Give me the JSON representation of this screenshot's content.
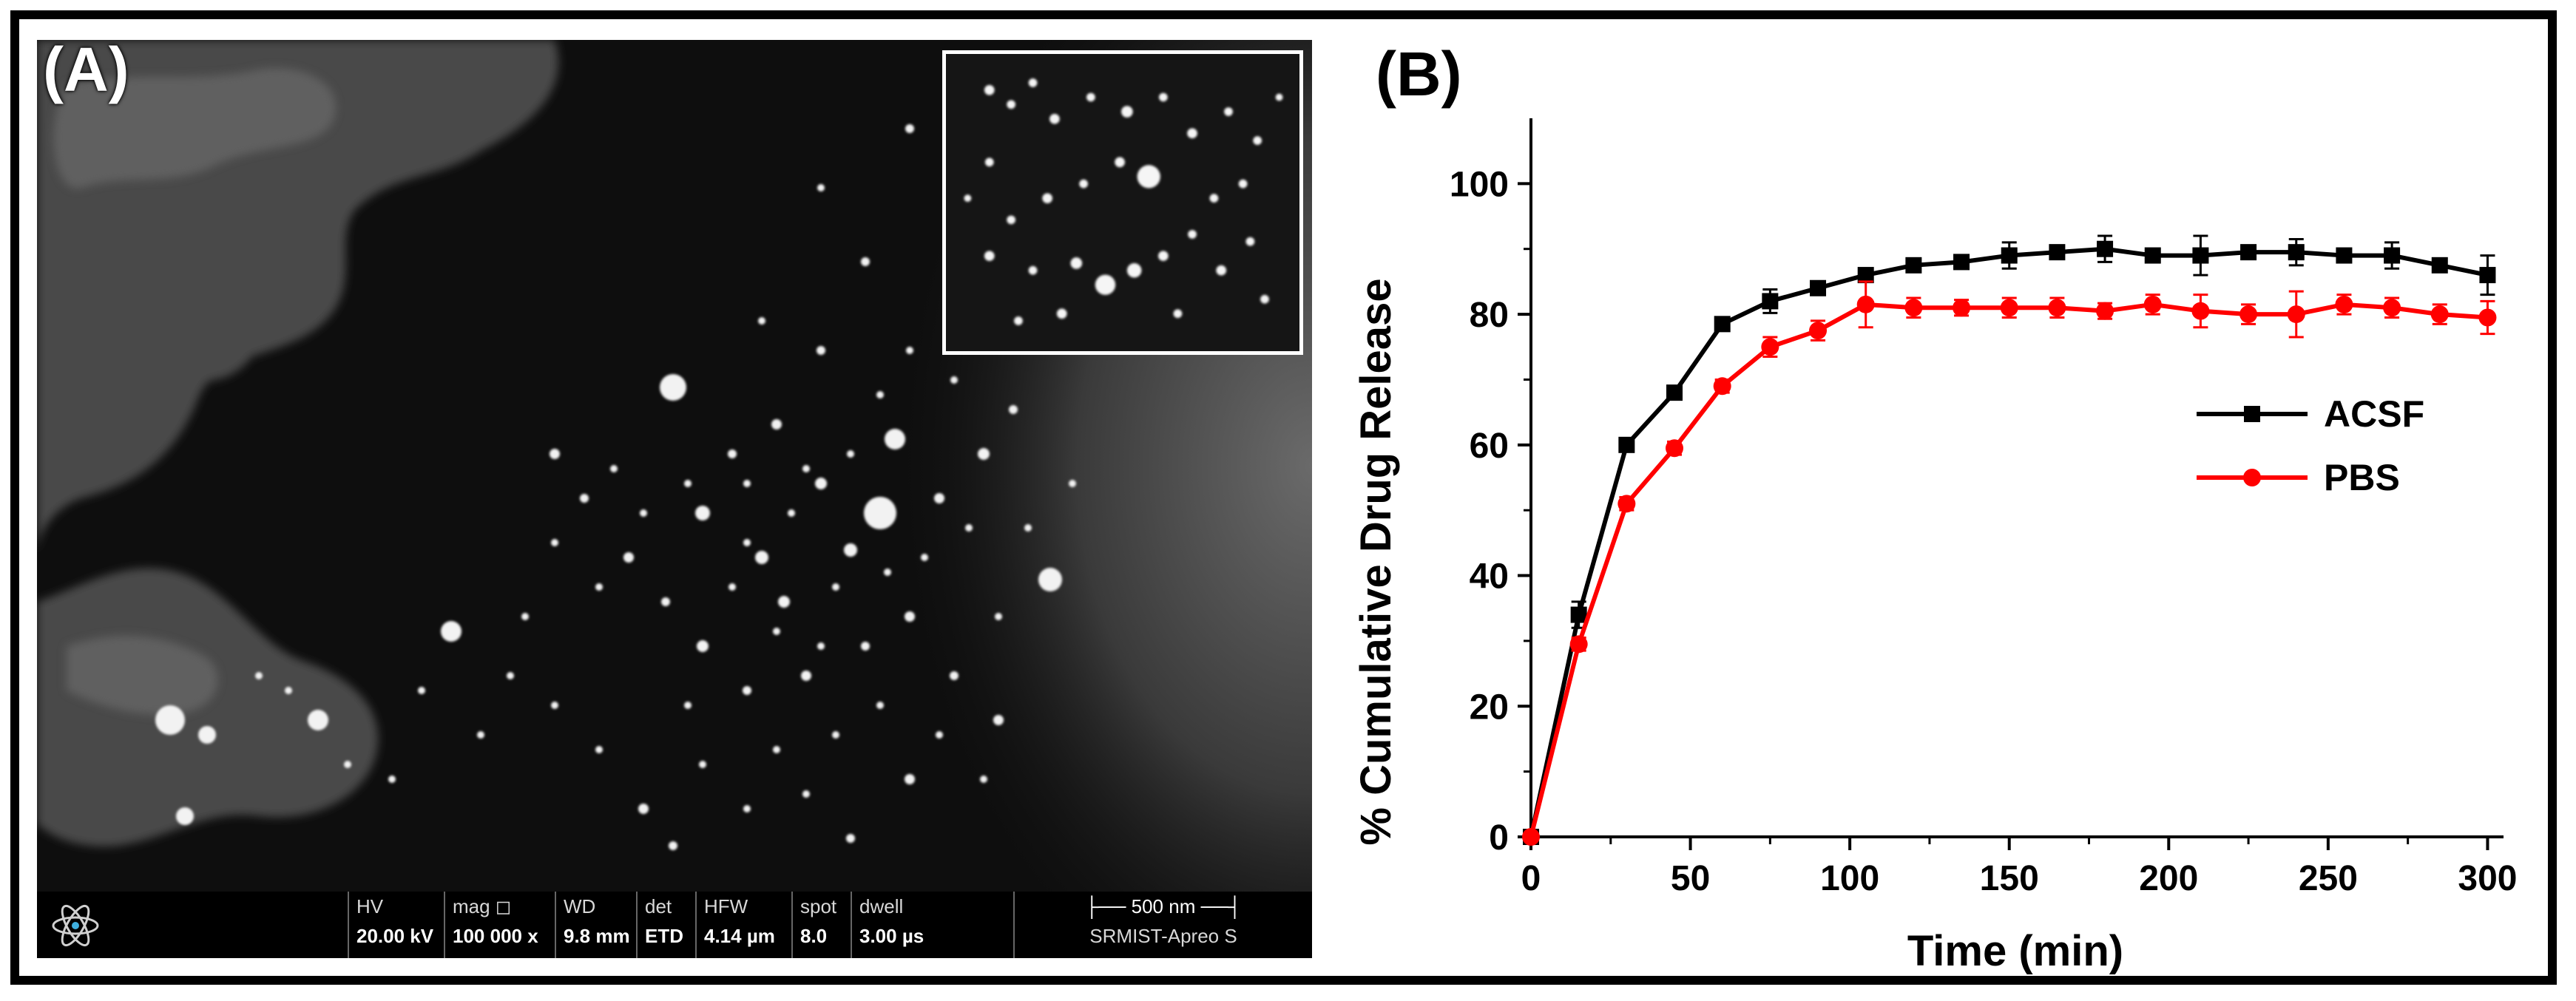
{
  "panel_a": {
    "label": "(A)",
    "sem_bar": {
      "fields": [
        {
          "key": "HV",
          "value": "20.00 kV"
        },
        {
          "key": "mag ◻",
          "value": "100 000 x"
        },
        {
          "key": "WD",
          "value": "9.8 mm"
        },
        {
          "key": "det",
          "value": "ETD"
        },
        {
          "key": "HFW",
          "value": "4.14 µm"
        },
        {
          "key": "spot",
          "value": "8.0"
        },
        {
          "key": "dwell",
          "value": "3.00 µs"
        }
      ],
      "scale_bar": "├── 500 nm ──┤",
      "instrument": "SRMIST-Apreo S"
    }
  },
  "panel_b": {
    "label": "(B)"
  },
  "chart_data": {
    "type": "line",
    "title": "",
    "xlabel": "Time (min)",
    "ylabel": "% Cumulative Drug Release",
    "xlim": [
      0,
      305
    ],
    "ylim": [
      0,
      110
    ],
    "xticks": [
      0,
      50,
      100,
      150,
      200,
      250,
      300
    ],
    "yticks": [
      0,
      20,
      40,
      60,
      80,
      100
    ],
    "grid": false,
    "legend_position": "right",
    "series": [
      {
        "name": "ACSF",
        "color": "#000000",
        "marker": "square",
        "x": [
          0,
          15,
          30,
          45,
          60,
          75,
          90,
          105,
          120,
          135,
          150,
          165,
          180,
          195,
          210,
          225,
          240,
          255,
          270,
          285,
          300
        ],
        "y": [
          0,
          34,
          60,
          68,
          78.5,
          82,
          84,
          86,
          87.5,
          88,
          89,
          89.5,
          90,
          89,
          89,
          89.5,
          89.5,
          89,
          89,
          87.5,
          86
        ],
        "err": [
          0,
          2,
          0.8,
          0.8,
          0.8,
          1.8,
          1,
          0.8,
          1,
          0.8,
          2,
          1,
          2,
          1,
          3,
          1,
          2,
          1,
          2,
          1,
          3
        ]
      },
      {
        "name": "PBS",
        "color": "#ff0000",
        "marker": "circle",
        "x": [
          0,
          15,
          30,
          45,
          60,
          75,
          90,
          105,
          120,
          135,
          150,
          165,
          180,
          195,
          210,
          225,
          240,
          255,
          270,
          285,
          300
        ],
        "y": [
          0,
          29.5,
          51,
          59.5,
          69,
          75,
          77.5,
          81.5,
          81,
          81,
          81,
          81,
          80.5,
          81.5,
          80.5,
          80,
          80,
          81.5,
          81,
          80,
          79.5
        ],
        "err": [
          0,
          1,
          1,
          1,
          1,
          1.5,
          1.5,
          3.5,
          1.5,
          1.2,
          1.5,
          1.5,
          1.2,
          1.5,
          2.5,
          1.5,
          3.5,
          1.5,
          1.5,
          1.5,
          2.5
        ]
      }
    ]
  }
}
